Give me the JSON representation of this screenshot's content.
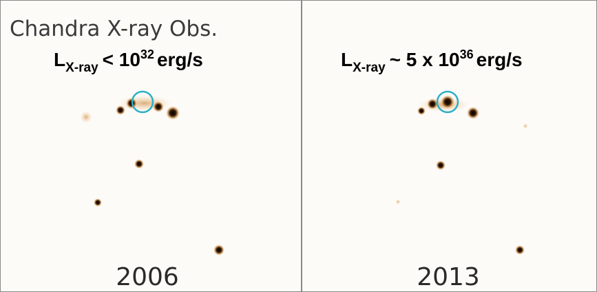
{
  "caption": "Chandra X-ray Obs.",
  "panels": [
    {
      "label": {
        "base": "L",
        "sub": "X-ray",
        "relation": "< 10",
        "sup": "32",
        "unit": "erg/s"
      },
      "year": "2006"
    },
    {
      "label": {
        "base": "L",
        "sub": "X-ray",
        "relation": "~ 5 x 10",
        "sup": "36",
        "unit": "erg/s"
      },
      "year": "2013"
    }
  ]
}
